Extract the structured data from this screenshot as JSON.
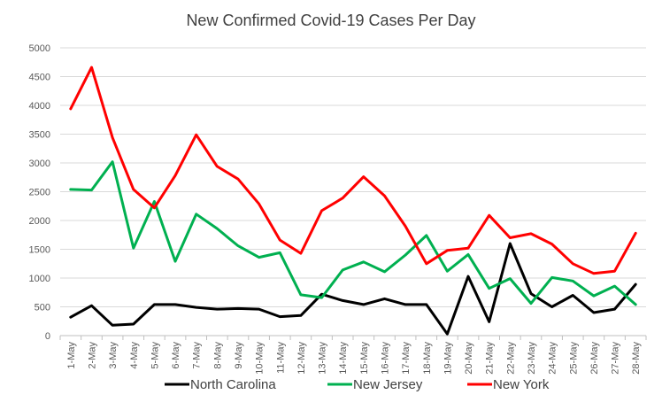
{
  "chart_data": {
    "type": "line",
    "title": "New Confirmed  Covid-19 Cases Per Day",
    "categories": [
      "1-May",
      "2-May",
      "3-May",
      "4-May",
      "5-May",
      "6-May",
      "7-May",
      "8-May",
      "9-May",
      "10-May",
      "11-May",
      "12-May",
      "13-May",
      "14-May",
      "15-May",
      "16-May",
      "17-May",
      "18-May",
      "19-May",
      "20-May",
      "21-May",
      "22-May",
      "23-May",
      "24-May",
      "25-May",
      "26-May",
      "27-May",
      "28-May"
    ],
    "ylim": [
      0,
      5000
    ],
    "yticks": [
      "0",
      "500",
      "1000",
      "1500",
      "2000",
      "2500",
      "3000",
      "3500",
      "4000",
      "4500",
      "5000"
    ],
    "ytick_values": [
      0,
      500,
      1000,
      1500,
      2000,
      2500,
      3000,
      3500,
      4000,
      4500,
      5000
    ],
    "grid": true,
    "legend_position": "bottom",
    "series": [
      {
        "name": "North Carolina",
        "color": "#000000",
        "values": [
          320,
          520,
          180,
          200,
          540,
          540,
          490,
          460,
          470,
          460,
          330,
          350,
          720,
          610,
          540,
          640,
          540,
          540,
          30,
          1030,
          240,
          1600,
          730,
          500,
          700,
          400,
          460,
          890
        ]
      },
      {
        "name": "New Jersey",
        "color": "#00b050",
        "values": [
          2540,
          2530,
          3020,
          1520,
          2330,
          1290,
          2110,
          1860,
          1560,
          1360,
          1440,
          710,
          660,
          1140,
          1280,
          1110,
          1400,
          1740,
          1120,
          1410,
          820,
          990,
          560,
          1010,
          950,
          690,
          860,
          540
        ]
      },
      {
        "name": "New York",
        "color": "#ff0000",
        "values": [
          3940,
          4660,
          3440,
          2540,
          2220,
          2780,
          3490,
          2940,
          2720,
          2290,
          1660,
          1430,
          2170,
          2390,
          2760,
          2430,
          1900,
          1250,
          1480,
          1520,
          2090,
          1700,
          1770,
          1590,
          1250,
          1080,
          1120,
          1780
        ]
      }
    ]
  }
}
